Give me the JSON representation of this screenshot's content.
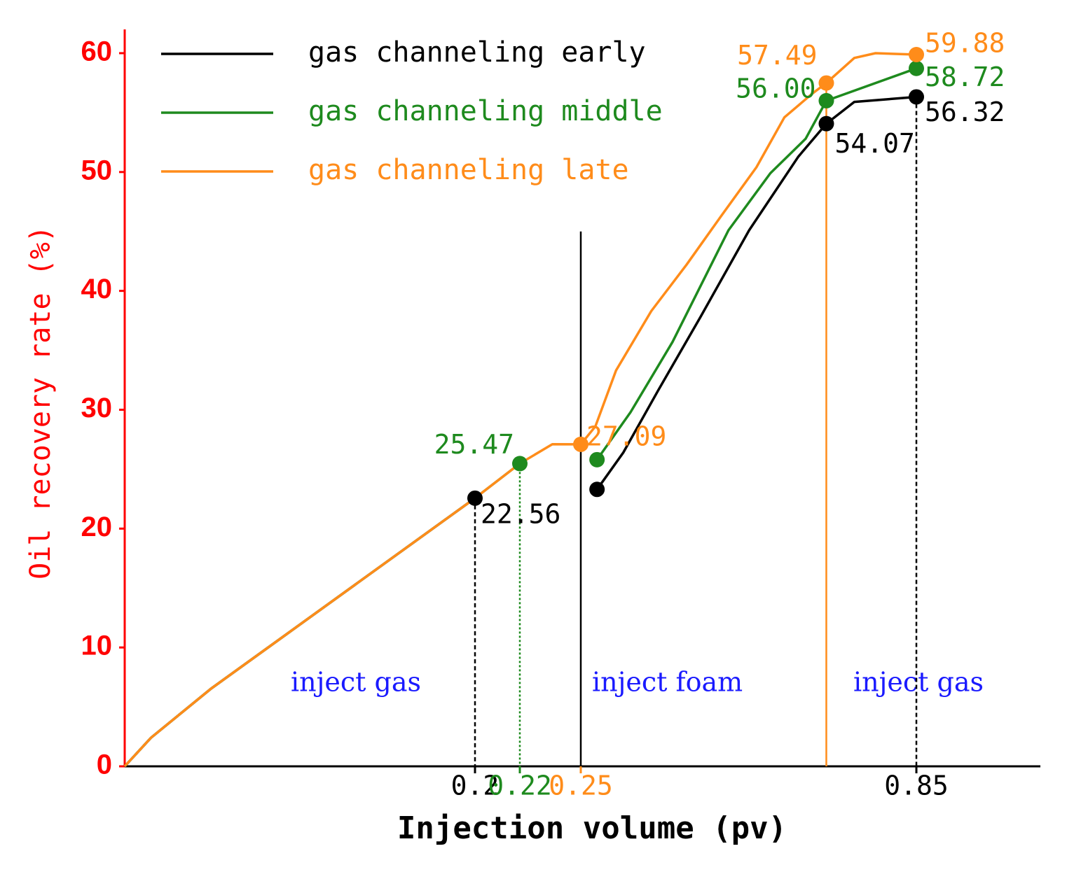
{
  "chart_data": {
    "type": "line",
    "xlabel": "Injection volume (pv)",
    "ylabel": "Oil recovery rate (%)",
    "xlim": [
      0,
      1
    ],
    "xticks": [
      0.2,
      0.22,
      0.25,
      0.85
    ],
    "xtick_colors": [
      "#000000",
      "#1e8a1e",
      "#ff8c1a",
      "#000000"
    ],
    "ylim": [
      0,
      62
    ],
    "yticks": [
      0,
      10,
      20,
      30,
      40,
      50,
      60
    ],
    "axis_color": "#ff0000",
    "legend": "upper left",
    "series": [
      {
        "name": "gas channeling early",
        "color": "#000000",
        "x": [
          0,
          0.015,
          0.049,
          0.2,
          null,
          0.279,
          0.326,
          0.388,
          0.464,
          0.551,
          0.639,
          0.689,
          0.739,
          0.85
        ],
        "values": [
          0,
          2.4,
          6.5,
          22.56,
          null,
          23.3,
          26.4,
          31.6,
          37.8,
          45.1,
          51.3,
          54.07,
          55.9,
          56.32
        ],
        "markers": [
          3,
          5,
          11,
          13
        ],
        "labeled": [
          3,
          11,
          13
        ],
        "drop_lines": [
          3,
          13
        ],
        "drop_style": "dashed"
      },
      {
        "name": "gas channeling middle",
        "color": "#1e8a1e",
        "x": [
          0,
          0.015,
          0.049,
          0.2,
          0.22,
          null,
          0.279,
          0.339,
          0.414,
          0.514,
          0.589,
          0.652,
          0.689,
          0.85
        ],
        "values": [
          0,
          2.4,
          6.5,
          22.56,
          25.47,
          null,
          25.8,
          29.8,
          35.7,
          45.1,
          49.9,
          52.8,
          56,
          58.72
        ],
        "value_labels": [
          null,
          null,
          null,
          null,
          null,
          null,
          null,
          null,
          null,
          null,
          null,
          null,
          "56.00",
          null
        ],
        "markers": [
          4,
          6,
          12,
          13
        ],
        "labeled": [
          4,
          12,
          13
        ],
        "drop_lines": [
          4
        ],
        "drop_style": "dotted"
      },
      {
        "name": "gas channeling late",
        "color": "#ff8c1a",
        "x": [
          0,
          0.015,
          0.049,
          0.2,
          0.22,
          0.236,
          0.25,
          0.276,
          0.313,
          0.376,
          0.439,
          0.501,
          0.564,
          0.614,
          0.664,
          0.689,
          0.739,
          0.777,
          0.85
        ],
        "values": [
          0,
          2.4,
          6.5,
          22.56,
          25.47,
          27.1,
          27.09,
          28.6,
          33.3,
          38.3,
          42.2,
          46.3,
          50.4,
          54.6,
          56.6,
          57.49,
          59.6,
          60,
          59.88
        ],
        "markers": [
          6,
          15,
          18
        ],
        "labeled": [
          6,
          15,
          18
        ],
        "drop_lines": [
          15
        ],
        "drop_style": "solid"
      }
    ],
    "dividers": [
      {
        "x": 0.25,
        "y": 45,
        "color": "#000000"
      }
    ],
    "annotations": [
      {
        "text": "inject gas",
        "color": "#1a1aff"
      },
      {
        "text": "inject foam",
        "color": "#1a1aff"
      },
      {
        "text": "inject gas",
        "color": "#1a1aff"
      }
    ]
  }
}
